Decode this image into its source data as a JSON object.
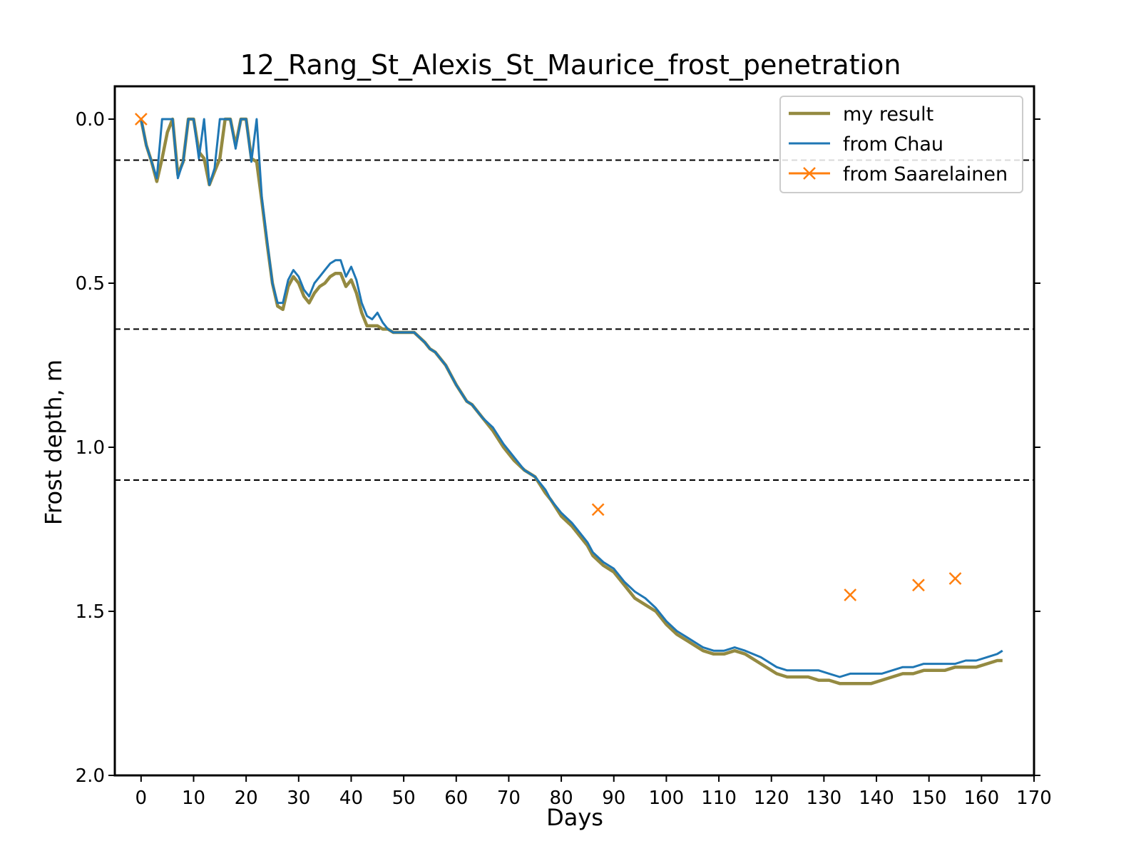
{
  "chart_data": {
    "type": "line",
    "title": "12_Rang_St_Alexis_St_Maurice_frost_penetration",
    "xlabel": "Days",
    "ylabel": "Frost depth, m",
    "xlim": [
      -5,
      170
    ],
    "ylim": [
      2.0,
      -0.1
    ],
    "y_inverted": true,
    "xticks": [
      0,
      10,
      20,
      30,
      40,
      50,
      60,
      70,
      80,
      90,
      100,
      110,
      120,
      130,
      140,
      150,
      160,
      170
    ],
    "yticks": [
      0.0,
      0.5,
      1.0,
      1.5,
      2.0
    ],
    "ytick_labels": [
      "0.0",
      "0.5",
      "1.0",
      "1.5",
      "2.0"
    ],
    "grid": false,
    "legend_position": "top-right",
    "reference_lines_y": [
      0.125,
      0.64,
      1.1
    ],
    "reference_line_color": "#000000",
    "series": [
      {
        "name": "my result",
        "color": "#948a41",
        "marker": "none",
        "x": [
          0,
          1,
          2,
          3,
          4,
          5,
          6,
          7,
          8,
          9,
          10,
          11,
          12,
          13,
          14,
          15,
          16,
          17,
          18,
          19,
          20,
          21,
          22,
          23,
          24,
          25,
          26,
          27,
          28,
          29,
          30,
          31,
          32,
          33,
          34,
          35,
          36,
          37,
          38,
          39,
          40,
          41,
          42,
          43,
          44,
          45,
          46,
          47,
          48,
          49,
          50,
          52,
          54,
          55,
          56,
          58,
          60,
          62,
          63,
          65,
          67,
          69,
          71,
          73,
          75,
          77,
          78,
          80,
          82,
          83,
          85,
          86,
          88,
          90,
          92,
          94,
          96,
          98,
          100,
          102,
          104,
          106,
          107,
          109,
          111,
          113,
          115,
          118,
          121,
          123,
          125,
          127,
          129,
          131,
          133,
          135,
          137,
          139,
          141,
          143,
          145,
          147,
          149,
          151,
          153,
          155,
          157,
          159,
          161,
          163,
          164
        ],
        "y": [
          0.0,
          0.08,
          0.13,
          0.19,
          0.12,
          0.04,
          0.0,
          0.17,
          0.13,
          0.0,
          0.0,
          0.1,
          0.12,
          0.2,
          0.16,
          0.12,
          0.0,
          0.0,
          0.08,
          0.0,
          0.0,
          0.12,
          0.13,
          0.25,
          0.38,
          0.5,
          0.57,
          0.58,
          0.51,
          0.48,
          0.5,
          0.54,
          0.56,
          0.53,
          0.51,
          0.5,
          0.48,
          0.47,
          0.47,
          0.51,
          0.49,
          0.53,
          0.59,
          0.63,
          0.63,
          0.63,
          0.64,
          0.64,
          0.65,
          0.65,
          0.65,
          0.65,
          0.68,
          0.7,
          0.71,
          0.75,
          0.81,
          0.86,
          0.87,
          0.91,
          0.95,
          1.0,
          1.04,
          1.07,
          1.09,
          1.14,
          1.16,
          1.21,
          1.24,
          1.26,
          1.3,
          1.33,
          1.36,
          1.38,
          1.42,
          1.46,
          1.48,
          1.5,
          1.54,
          1.57,
          1.59,
          1.61,
          1.62,
          1.63,
          1.63,
          1.62,
          1.63,
          1.66,
          1.69,
          1.7,
          1.7,
          1.7,
          1.71,
          1.71,
          1.72,
          1.72,
          1.72,
          1.72,
          1.71,
          1.7,
          1.69,
          1.69,
          1.68,
          1.68,
          1.68,
          1.67,
          1.67,
          1.67,
          1.66,
          1.65,
          1.65
        ]
      },
      {
        "name": "from Chau",
        "color": "#1f77b4",
        "marker": "none",
        "x": [
          0,
          1,
          2,
          3,
          4,
          5,
          6,
          7,
          8,
          9,
          10,
          11,
          12,
          13,
          14,
          15,
          16,
          17,
          18,
          19,
          20,
          21,
          22,
          23,
          24,
          25,
          26,
          27,
          28,
          29,
          30,
          31,
          32,
          33,
          34,
          35,
          36,
          37,
          38,
          39,
          40,
          41,
          42,
          43,
          44,
          45,
          46,
          47,
          48,
          49,
          50,
          52,
          54,
          55,
          56,
          58,
          60,
          62,
          63,
          65,
          67,
          69,
          71,
          73,
          75,
          77,
          78,
          80,
          82,
          83,
          85,
          86,
          88,
          90,
          92,
          94,
          96,
          98,
          100,
          102,
          104,
          106,
          107,
          109,
          111,
          113,
          115,
          118,
          121,
          123,
          125,
          127,
          129,
          131,
          133,
          135,
          137,
          139,
          141,
          143,
          145,
          147,
          149,
          151,
          153,
          155,
          157,
          159,
          161,
          163,
          164
        ],
        "y": [
          0.0,
          0.08,
          0.13,
          0.18,
          0.0,
          0.0,
          0.0,
          0.18,
          0.13,
          0.0,
          0.0,
          0.12,
          0.0,
          0.2,
          0.15,
          0.0,
          0.0,
          0.0,
          0.09,
          0.0,
          0.0,
          0.13,
          0.0,
          0.24,
          0.37,
          0.5,
          0.56,
          0.56,
          0.49,
          0.46,
          0.48,
          0.52,
          0.54,
          0.5,
          0.48,
          0.46,
          0.44,
          0.43,
          0.43,
          0.48,
          0.45,
          0.49,
          0.56,
          0.6,
          0.61,
          0.59,
          0.62,
          0.64,
          0.65,
          0.65,
          0.65,
          0.65,
          0.68,
          0.7,
          0.71,
          0.75,
          0.81,
          0.86,
          0.87,
          0.91,
          0.94,
          0.99,
          1.03,
          1.07,
          1.09,
          1.13,
          1.16,
          1.2,
          1.23,
          1.25,
          1.29,
          1.32,
          1.35,
          1.37,
          1.41,
          1.44,
          1.46,
          1.49,
          1.53,
          1.56,
          1.58,
          1.6,
          1.61,
          1.62,
          1.62,
          1.61,
          1.62,
          1.64,
          1.67,
          1.68,
          1.68,
          1.68,
          1.68,
          1.69,
          1.7,
          1.69,
          1.69,
          1.69,
          1.69,
          1.68,
          1.67,
          1.67,
          1.66,
          1.66,
          1.66,
          1.66,
          1.65,
          1.65,
          1.64,
          1.63,
          1.62
        ]
      },
      {
        "name": "from Saarelainen",
        "color": "#ff7f0e",
        "marker": "x",
        "linestyle": "none",
        "x": [
          0,
          87,
          135,
          148,
          155
        ],
        "y": [
          0.0,
          1.19,
          1.45,
          1.42,
          1.4
        ]
      }
    ]
  }
}
